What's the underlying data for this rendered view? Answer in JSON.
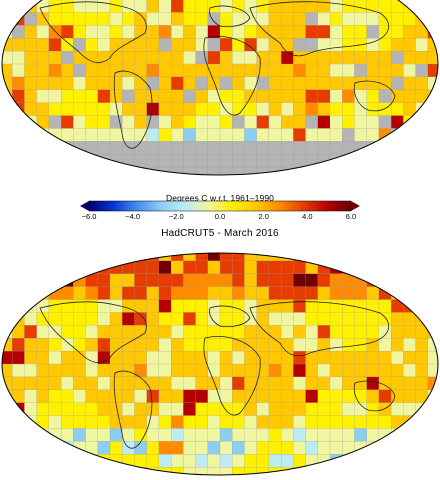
{
  "colorbar": {
    "title": "Degrees C w.r.t. 1961–1990",
    "ticks": [
      "−6.0",
      "−4.0",
      "−2.0",
      "0.0",
      "2.0",
      "4.0",
      "6.0"
    ],
    "range": [
      -6.0,
      6.0
    ],
    "stops": [
      "#00006e",
      "#0a32d2",
      "#3c8cf0",
      "#8ccdf0",
      "#bdebf2",
      "#f0f5a0",
      "#fff000",
      "#ffc800",
      "#ff8c00",
      "#e63c00",
      "#b40000",
      "#6e0000"
    ]
  },
  "maps": {
    "top": {
      "description": "Observed temperature anomaly grid with missing (grey) cells",
      "missing_color": "#b4b4b4"
    },
    "bottom": {
      "title": "HadCRUT5 - March 2016"
    }
  }
}
